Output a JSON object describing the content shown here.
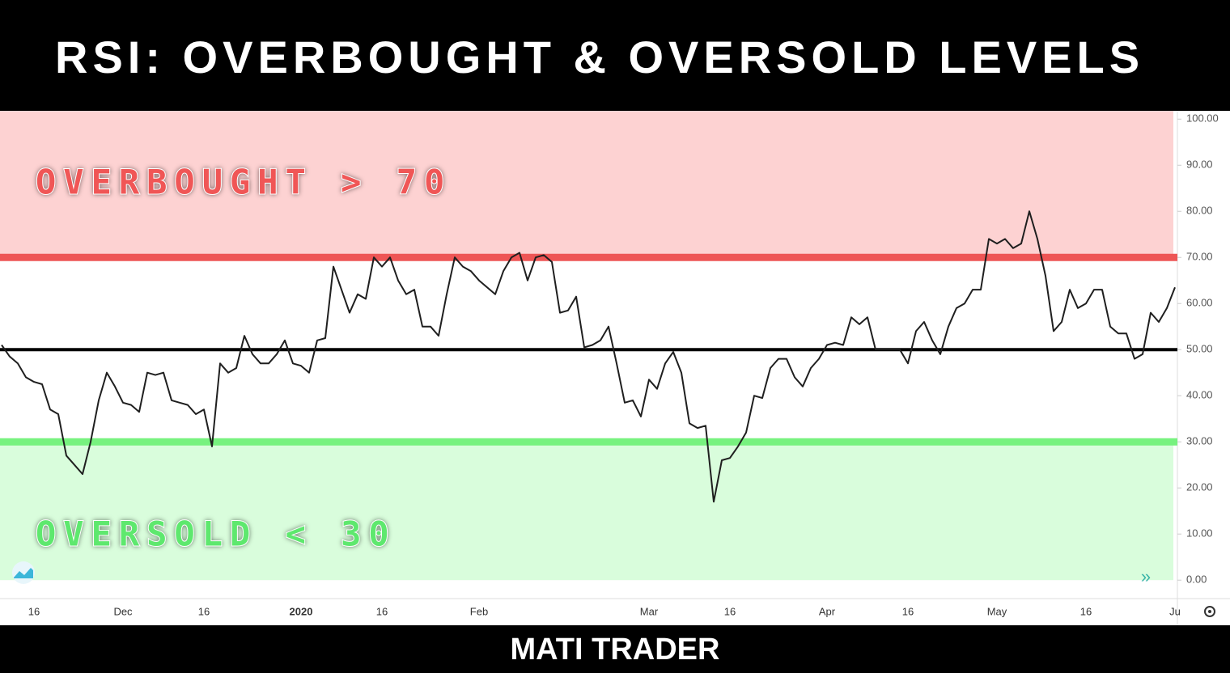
{
  "chart_data": {
    "type": "line",
    "title": "RSI: OVERBOUGHT & OVERSOLD LEVELS",
    "annotations": [
      "OVERBOUGHT > 70",
      "OVERSOLD < 30"
    ],
    "overbought": 70,
    "oversold": 30,
    "midline": 50,
    "color": "#1f1f1f",
    "categories": [
      null,
      null,
      null,
      null,
      "16",
      null,
      null,
      null,
      null,
      null,
      null,
      null,
      null,
      null,
      null,
      "Dec",
      null,
      null,
      null,
      null,
      null,
      null,
      null,
      null,
      null,
      "16",
      null,
      null,
      null,
      null,
      null,
      null,
      null,
      null,
      null,
      null,
      null,
      "2020",
      null,
      null,
      null,
      null,
      null,
      null,
      null,
      null,
      null,
      "16",
      null,
      null,
      null,
      null,
      null,
      null,
      null,
      null,
      null,
      null,
      null,
      "Feb",
      null,
      null,
      null,
      null,
      null,
      null,
      null,
      null,
      null,
      null,
      null,
      null,
      null,
      null,
      null,
      null,
      null,
      null,
      null,
      null,
      "Mar",
      null,
      null,
      null,
      null,
      null,
      null,
      null,
      null,
      null,
      "16",
      null,
      null,
      null,
      null,
      null,
      null,
      null,
      null,
      null,
      null,
      null,
      "Apr",
      null,
      null,
      null,
      null,
      null,
      null,
      null,
      null,
      null,
      "16",
      null,
      null,
      null,
      null,
      null,
      null,
      null,
      null,
      null,
      null,
      "May",
      null,
      null,
      null,
      null,
      null,
      null,
      null,
      null,
      null,
      null,
      "16",
      null,
      null,
      null,
      null,
      null,
      null,
      null,
      null,
      null,
      null,
      "Ju"
    ],
    "values": [
      51,
      48.5,
      47,
      44,
      43,
      42.5,
      37,
      36,
      27,
      25,
      23,
      30,
      39,
      45,
      42,
      38.5,
      38,
      36.5,
      45,
      44.5,
      45,
      39,
      38.5,
      38,
      36,
      37,
      29,
      47,
      45,
      46,
      53,
      49,
      47,
      47,
      49,
      52,
      47,
      46.5,
      45,
      52,
      52.5,
      68,
      63,
      58,
      62,
      61,
      70,
      68,
      70,
      65,
      62,
      63,
      55,
      55,
      53,
      62,
      70,
      68,
      67,
      65,
      63.5,
      62,
      67,
      70,
      71,
      65,
      70,
      70.5,
      69,
      58,
      58.5,
      61.5,
      50.5,
      51,
      52,
      55,
      47,
      38.5,
      39,
      35.5,
      43.5,
      41.5,
      47,
      49.5,
      45,
      34,
      33,
      33.5,
      17,
      26,
      26.5,
      29,
      32,
      40,
      39.5,
      46,
      48,
      48,
      44,
      42,
      46,
      48,
      51,
      51.5,
      51,
      57,
      55.5,
      57,
      50,
      50,
      50,
      50,
      47,
      54,
      56,
      52,
      49,
      55,
      59,
      60,
      63,
      63,
      74,
      73,
      74,
      72,
      73,
      80,
      74,
      66,
      54,
      56,
      63,
      59,
      60,
      63,
      63,
      55,
      53.5,
      53.5,
      48,
      49,
      58,
      56,
      59,
      63.5
    ],
    "ylim": [
      -4,
      101.8
    ],
    "yticks": [
      {
        "value": 0,
        "label": "0.00"
      },
      {
        "value": 10,
        "label": "10.00"
      },
      {
        "value": 20,
        "label": "20.00"
      },
      {
        "value": 30,
        "label": "30.00"
      },
      {
        "value": 40,
        "label": "40.00"
      },
      {
        "value": 50,
        "label": "50.00"
      },
      {
        "value": 60,
        "label": "60.00"
      },
      {
        "value": 70,
        "label": "70.00"
      },
      {
        "value": 80,
        "label": "80.00"
      },
      {
        "value": 90,
        "label": "90.00"
      },
      {
        "value": 100,
        "label": "100.00"
      }
    ]
  },
  "footer": "MATI TRADER"
}
